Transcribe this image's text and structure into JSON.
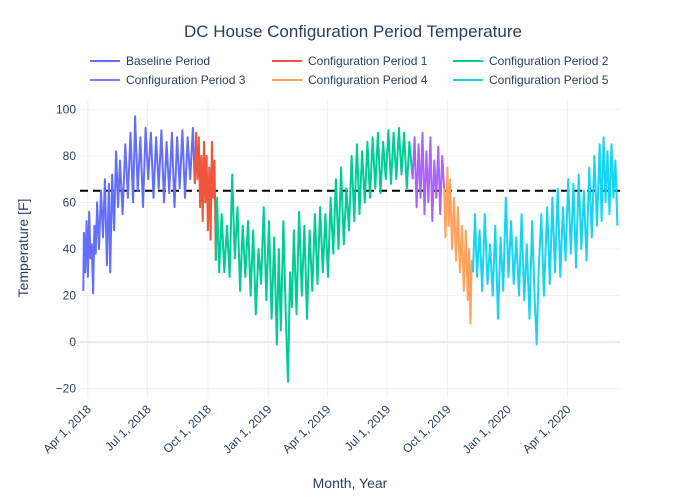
{
  "chart_data": {
    "type": "line",
    "title": "DC House Configuration Period Temperature",
    "xlabel": "Month, Year",
    "ylabel": "Temperature [F]",
    "ylim": [
      -24,
      104
    ],
    "xlim": [
      "2018-03-20",
      "2020-06-20"
    ],
    "grid": true,
    "legend_position": "top",
    "reference_line": {
      "y": 65,
      "style": "dashed",
      "color": "#000000"
    },
    "x_ticks": [
      {
        "date": "2018-04-01",
        "label": "Apr 1, 2018"
      },
      {
        "date": "2018-07-01",
        "label": "Jul 1, 2018"
      },
      {
        "date": "2018-10-01",
        "label": "Oct 1, 2018"
      },
      {
        "date": "2019-01-01",
        "label": "Jan 1, 2019"
      },
      {
        "date": "2019-04-01",
        "label": "Apr 1, 2019"
      },
      {
        "date": "2019-07-01",
        "label": "Jul 1, 2019"
      },
      {
        "date": "2019-10-01",
        "label": "Oct 1, 2019"
      },
      {
        "date": "2020-01-01",
        "label": "Jan 1, 2020"
      },
      {
        "date": "2020-04-01",
        "label": "Apr 1, 2020"
      }
    ],
    "y_ticks": [
      {
        "value": -20,
        "label": "−20"
      },
      {
        "value": 0,
        "label": "0"
      },
      {
        "value": 20,
        "label": "20"
      },
      {
        "value": 40,
        "label": "40"
      },
      {
        "value": 60,
        "label": "60"
      },
      {
        "value": 80,
        "label": "80"
      },
      {
        "value": 100,
        "label": "100"
      }
    ],
    "series": [
      {
        "name": "Baseline Period",
        "color": "#636efa",
        "points": [
          [
            "2018-03-25",
            22
          ],
          [
            "2018-03-26",
            47
          ],
          [
            "2018-03-28",
            30
          ],
          [
            "2018-03-30",
            52
          ],
          [
            "2018-04-01",
            28
          ],
          [
            "2018-04-03",
            56
          ],
          [
            "2018-04-05",
            36
          ],
          [
            "2018-04-07",
            42
          ],
          [
            "2018-04-09",
            21
          ],
          [
            "2018-04-11",
            50
          ],
          [
            "2018-04-13",
            38
          ],
          [
            "2018-04-15",
            60
          ],
          [
            "2018-04-18",
            40
          ],
          [
            "2018-04-21",
            65
          ],
          [
            "2018-04-24",
            45
          ],
          [
            "2018-04-27",
            70
          ],
          [
            "2018-04-30",
            33
          ],
          [
            "2018-05-03",
            68
          ],
          [
            "2018-05-05",
            30
          ],
          [
            "2018-05-08",
            72
          ],
          [
            "2018-05-11",
            48
          ],
          [
            "2018-05-14",
            82
          ],
          [
            "2018-05-17",
            58
          ],
          [
            "2018-05-20",
            78
          ],
          [
            "2018-05-24",
            55
          ],
          [
            "2018-05-28",
            85
          ],
          [
            "2018-06-01",
            62
          ],
          [
            "2018-06-05",
            90
          ],
          [
            "2018-06-09",
            60
          ],
          [
            "2018-06-12",
            97
          ],
          [
            "2018-06-16",
            65
          ],
          [
            "2018-06-20",
            88
          ],
          [
            "2018-06-24",
            58
          ],
          [
            "2018-06-28",
            92
          ],
          [
            "2018-07-02",
            70
          ],
          [
            "2018-07-06",
            90
          ],
          [
            "2018-07-10",
            62
          ],
          [
            "2018-07-14",
            88
          ],
          [
            "2018-07-18",
            66
          ],
          [
            "2018-07-22",
            91
          ],
          [
            "2018-07-26",
            60
          ],
          [
            "2018-07-30",
            86
          ],
          [
            "2018-08-03",
            64
          ],
          [
            "2018-08-07",
            90
          ],
          [
            "2018-08-11",
            58
          ],
          [
            "2018-08-15",
            88
          ],
          [
            "2018-08-19",
            66
          ],
          [
            "2018-08-23",
            91
          ],
          [
            "2018-08-27",
            62
          ],
          [
            "2018-08-31",
            88
          ],
          [
            "2018-09-04",
            70
          ],
          [
            "2018-09-08",
            92
          ],
          [
            "2018-09-11",
            68
          ]
        ]
      },
      {
        "name": "Configuration Period 1",
        "color": "#ef553b",
        "points": [
          [
            "2018-09-11",
            68
          ],
          [
            "2018-09-13",
            90
          ],
          [
            "2018-09-15",
            70
          ],
          [
            "2018-09-17",
            88
          ],
          [
            "2018-09-19",
            58
          ],
          [
            "2018-09-21",
            80
          ],
          [
            "2018-09-23",
            52
          ],
          [
            "2018-09-25",
            86
          ],
          [
            "2018-09-27",
            60
          ],
          [
            "2018-09-29",
            80
          ],
          [
            "2018-10-01",
            48
          ],
          [
            "2018-10-03",
            75
          ],
          [
            "2018-10-05",
            44
          ],
          [
            "2018-10-07",
            86
          ],
          [
            "2018-10-09",
            62
          ],
          [
            "2018-10-11",
            78
          ],
          [
            "2018-10-13",
            35
          ]
        ]
      },
      {
        "name": "Configuration Period 2",
        "color": "#00cc96",
        "points": [
          [
            "2018-10-13",
            35
          ],
          [
            "2018-10-15",
            62
          ],
          [
            "2018-10-18",
            30
          ],
          [
            "2018-10-22",
            55
          ],
          [
            "2018-10-26",
            30
          ],
          [
            "2018-10-30",
            50
          ],
          [
            "2018-11-03",
            28
          ],
          [
            "2018-11-07",
            72
          ],
          [
            "2018-11-11",
            36
          ],
          [
            "2018-11-15",
            58
          ],
          [
            "2018-11-19",
            22
          ],
          [
            "2018-11-23",
            50
          ],
          [
            "2018-11-27",
            28
          ],
          [
            "2018-12-01",
            52
          ],
          [
            "2018-12-05",
            20
          ],
          [
            "2018-12-09",
            48
          ],
          [
            "2018-12-13",
            12
          ],
          [
            "2018-12-17",
            40
          ],
          [
            "2018-12-21",
            25
          ],
          [
            "2018-12-25",
            58
          ],
          [
            "2018-12-29",
            18
          ],
          [
            "2019-01-02",
            52
          ],
          [
            "2019-01-06",
            10
          ],
          [
            "2019-01-10",
            45
          ],
          [
            "2019-01-14",
            -1
          ],
          [
            "2019-01-17",
            40
          ],
          [
            "2019-01-20",
            5
          ],
          [
            "2019-01-24",
            52
          ],
          [
            "2019-01-28",
            8
          ],
          [
            "2019-01-31",
            -17
          ],
          [
            "2019-02-03",
            30
          ],
          [
            "2019-02-06",
            15
          ],
          [
            "2019-02-09",
            48
          ],
          [
            "2019-02-13",
            12
          ],
          [
            "2019-02-17",
            56
          ],
          [
            "2019-02-21",
            20
          ],
          [
            "2019-02-25",
            50
          ],
          [
            "2019-03-01",
            10
          ],
          [
            "2019-03-05",
            48
          ],
          [
            "2019-03-09",
            22
          ],
          [
            "2019-03-13",
            55
          ],
          [
            "2019-03-17",
            25
          ],
          [
            "2019-03-21",
            58
          ],
          [
            "2019-03-25",
            30
          ],
          [
            "2019-03-29",
            55
          ],
          [
            "2019-04-02",
            28
          ],
          [
            "2019-04-06",
            62
          ],
          [
            "2019-04-10",
            38
          ],
          [
            "2019-04-14",
            70
          ],
          [
            "2019-04-18",
            40
          ],
          [
            "2019-04-22",
            75
          ],
          [
            "2019-04-26",
            42
          ],
          [
            "2019-04-30",
            66
          ],
          [
            "2019-05-04",
            48
          ],
          [
            "2019-05-08",
            80
          ],
          [
            "2019-05-12",
            52
          ],
          [
            "2019-05-16",
            85
          ],
          [
            "2019-05-20",
            55
          ],
          [
            "2019-05-24",
            82
          ],
          [
            "2019-05-28",
            60
          ],
          [
            "2019-06-01",
            86
          ],
          [
            "2019-06-05",
            62
          ],
          [
            "2019-06-09",
            88
          ],
          [
            "2019-06-13",
            66
          ],
          [
            "2019-06-17",
            90
          ],
          [
            "2019-06-21",
            64
          ],
          [
            "2019-06-25",
            86
          ],
          [
            "2019-06-29",
            70
          ],
          [
            "2019-07-03",
            91
          ],
          [
            "2019-07-07",
            68
          ],
          [
            "2019-07-11",
            90
          ],
          [
            "2019-07-15",
            70
          ],
          [
            "2019-07-19",
            92
          ],
          [
            "2019-07-23",
            72
          ],
          [
            "2019-07-27",
            90
          ],
          [
            "2019-07-31",
            66
          ],
          [
            "2019-08-04",
            86
          ],
          [
            "2019-08-09",
            70
          ]
        ]
      },
      {
        "name": "Configuration Period 3",
        "color": "#ab63fa",
        "points": [
          [
            "2019-08-09",
            70
          ],
          [
            "2019-08-12",
            88
          ],
          [
            "2019-08-15",
            58
          ],
          [
            "2019-08-18",
            85
          ],
          [
            "2019-08-21",
            62
          ],
          [
            "2019-08-24",
            90
          ],
          [
            "2019-08-27",
            55
          ],
          [
            "2019-08-30",
            82
          ],
          [
            "2019-09-02",
            60
          ],
          [
            "2019-09-05",
            88
          ],
          [
            "2019-09-08",
            52
          ],
          [
            "2019-09-11",
            78
          ],
          [
            "2019-09-14",
            62
          ],
          [
            "2019-09-17",
            84
          ],
          [
            "2019-09-20",
            55
          ],
          [
            "2019-09-23",
            80
          ],
          [
            "2019-09-26",
            66
          ]
        ]
      },
      {
        "name": "Configuration Period 4",
        "color": "#ffa15a",
        "points": [
          [
            "2019-09-26",
            66
          ],
          [
            "2019-09-28",
            45
          ],
          [
            "2019-10-01",
            75
          ],
          [
            "2019-10-03",
            50
          ],
          [
            "2019-10-05",
            70
          ],
          [
            "2019-10-08",
            40
          ],
          [
            "2019-10-11",
            62
          ],
          [
            "2019-10-14",
            35
          ],
          [
            "2019-10-17",
            58
          ],
          [
            "2019-10-20",
            30
          ],
          [
            "2019-10-23",
            50
          ],
          [
            "2019-10-26",
            22
          ],
          [
            "2019-10-29",
            48
          ],
          [
            "2019-11-01",
            18
          ],
          [
            "2019-11-03",
            40
          ],
          [
            "2019-11-05",
            8
          ],
          [
            "2019-11-07",
            35
          ],
          [
            "2019-11-09",
            30
          ]
        ]
      },
      {
        "name": "Configuration Period 5",
        "color": "#19d3f3",
        "points": [
          [
            "2019-11-09",
            30
          ],
          [
            "2019-11-12",
            55
          ],
          [
            "2019-11-15",
            28
          ],
          [
            "2019-11-19",
            48
          ],
          [
            "2019-11-23",
            22
          ],
          [
            "2019-11-27",
            55
          ],
          [
            "2019-12-01",
            25
          ],
          [
            "2019-12-05",
            42
          ],
          [
            "2019-12-09",
            20
          ],
          [
            "2019-12-13",
            50
          ],
          [
            "2019-12-17",
            10
          ],
          [
            "2019-12-21",
            45
          ],
          [
            "2019-12-25",
            22
          ],
          [
            "2019-12-29",
            62
          ],
          [
            "2020-01-02",
            28
          ],
          [
            "2020-01-06",
            52
          ],
          [
            "2020-01-10",
            25
          ],
          [
            "2020-01-14",
            45
          ],
          [
            "2020-01-18",
            20
          ],
          [
            "2020-01-22",
            55
          ],
          [
            "2020-01-26",
            18
          ],
          [
            "2020-01-30",
            42
          ],
          [
            "2020-02-03",
            10
          ],
          [
            "2020-02-07",
            52
          ],
          [
            "2020-02-11",
            18
          ],
          [
            "2020-02-14",
            -1
          ],
          [
            "2020-02-17",
            30
          ],
          [
            "2020-02-21",
            55
          ],
          [
            "2020-02-25",
            20
          ],
          [
            "2020-03-01",
            58
          ],
          [
            "2020-03-05",
            25
          ],
          [
            "2020-03-09",
            62
          ],
          [
            "2020-03-13",
            30
          ],
          [
            "2020-03-17",
            66
          ],
          [
            "2020-03-21",
            28
          ],
          [
            "2020-03-25",
            58
          ],
          [
            "2020-03-29",
            35
          ],
          [
            "2020-04-02",
            70
          ],
          [
            "2020-04-06",
            38
          ],
          [
            "2020-04-10",
            68
          ],
          [
            "2020-04-14",
            32
          ],
          [
            "2020-04-18",
            72
          ],
          [
            "2020-04-22",
            40
          ],
          [
            "2020-04-26",
            65
          ],
          [
            "2020-04-30",
            35
          ],
          [
            "2020-05-04",
            75
          ],
          [
            "2020-05-08",
            45
          ],
          [
            "2020-05-12",
            80
          ],
          [
            "2020-05-16",
            50
          ],
          [
            "2020-05-20",
            85
          ],
          [
            "2020-05-23",
            52
          ],
          [
            "2020-05-26",
            88
          ],
          [
            "2020-05-29",
            60
          ],
          [
            "2020-06-01",
            82
          ],
          [
            "2020-06-04",
            55
          ],
          [
            "2020-06-07",
            85
          ],
          [
            "2020-06-10",
            62
          ],
          [
            "2020-06-13",
            78
          ],
          [
            "2020-06-16",
            50
          ]
        ]
      }
    ]
  }
}
